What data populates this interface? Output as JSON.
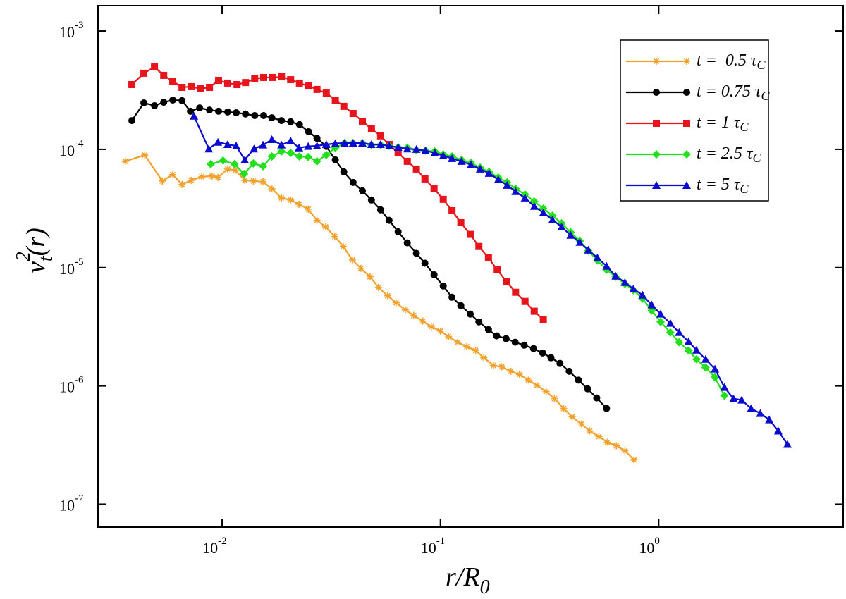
{
  "chart_data": {
    "type": "line",
    "log_x": true,
    "log_y": true,
    "xlabel": {
      "base": "r/R",
      "sub": "0"
    },
    "ylabel": {
      "base": "v",
      "sup": "2",
      "sub": "t",
      "rest": "(r)"
    },
    "xlim": [
      0.0027,
      7
    ],
    "ylim": [
      6.4e-08,
      0.00164
    ],
    "xticks": [
      {
        "value": 0.01,
        "label": "10",
        "exponent": "-2"
      },
      {
        "value": 0.1,
        "label": "10",
        "exponent": "-1"
      },
      {
        "value": 1,
        "label": "10",
        "exponent": "0"
      }
    ],
    "yticks": [
      {
        "value": 1e-07,
        "label": "10",
        "exponent": "-7"
      },
      {
        "value": 1e-06,
        "label": "10",
        "exponent": "-6"
      },
      {
        "value": 1e-05,
        "label": "10",
        "exponent": "-5"
      },
      {
        "value": 0.0001,
        "label": "10",
        "exponent": "-4"
      },
      {
        "value": 0.001,
        "label": "10",
        "exponent": "-3"
      }
    ],
    "grid": false,
    "legend": "upper right",
    "series": [
      {
        "name": "t =  0.5 τ",
        "name_sub": "C",
        "color": "#f2a12c",
        "marker": "star",
        "x": [
          0.0036,
          0.00442,
          0.00532,
          0.00594,
          0.00655,
          0.00722,
          0.00806,
          0.009,
          0.00957,
          0.0106,
          0.0115,
          0.0127,
          0.0139,
          0.0154,
          0.0169,
          0.0187,
          0.0206,
          0.0225,
          0.0248,
          0.0272,
          0.0298,
          0.0328,
          0.0359,
          0.0395,
          0.0432,
          0.0476,
          0.052,
          0.0573,
          0.0627,
          0.069,
          0.0754,
          0.083,
          0.0908,
          0.1,
          0.109,
          0.12,
          0.132,
          0.145,
          0.158,
          0.175,
          0.191,
          0.21,
          0.23,
          0.253,
          0.277,
          0.305,
          0.333,
          0.367,
          0.401,
          0.442,
          0.483,
          0.532,
          0.582,
          0.64,
          0.7,
          0.771
        ],
        "values": [
          7.92e-05,
          8.96e-05,
          5.4e-05,
          6.11e-05,
          5.04e-05,
          5.47e-05,
          5.86e-05,
          5.94e-05,
          5.78e-05,
          6.81e-05,
          6.63e-05,
          5.47e-05,
          5.4e-05,
          5.32e-05,
          4.64e-05,
          3.88e-05,
          3.73e-05,
          3.43e-05,
          3.12e-05,
          2.51e-05,
          2.21e-05,
          1.83e-05,
          1.51e-05,
          1.16e-05,
          9.86e-06,
          8.37e-06,
          6.81e-06,
          5.78e-06,
          5.04e-06,
          4.4e-06,
          3.94e-06,
          3.53e-06,
          3.16e-06,
          2.91e-06,
          2.61e-06,
          2.34e-06,
          2.15e-06,
          1.99e-06,
          1.73e-06,
          1.49e-06,
          1.45e-06,
          1.33e-06,
          1.25e-06,
          1.12e-06,
          1.01e-06,
          8.96e-07,
          7.81e-07,
          6.45e-07,
          5.47e-07,
          4.77e-07,
          4.16e-07,
          3.73e-07,
          3.34e-07,
          3.12e-07,
          2.83e-07,
          2.37e-07
        ]
      },
      {
        "name": "t = 0.75 τ",
        "name_sub": "C",
        "color": "#000000",
        "marker": "circle",
        "x": [
          0.00386,
          0.00438,
          0.0049,
          0.0054,
          0.00594,
          0.00655,
          0.00716,
          0.00789,
          0.00875,
          0.00963,
          0.0106,
          0.0116,
          0.0128,
          0.0141,
          0.0155,
          0.0169,
          0.0187,
          0.0206,
          0.0226,
          0.0249,
          0.0272,
          0.03,
          0.033,
          0.0361,
          0.0398,
          0.0439,
          0.0483,
          0.0532,
          0.0582,
          0.064,
          0.0705,
          0.0776,
          0.0849,
          0.0935,
          0.103,
          0.113,
          0.124,
          0.137,
          0.15,
          0.166,
          0.181,
          0.2,
          0.22,
          0.242,
          0.267,
          0.294,
          0.321,
          0.353,
          0.389,
          0.429,
          0.472,
          0.52,
          0.577
        ],
        "values": [
          0.000175,
          0.000247,
          0.000234,
          0.00025,
          0.000261,
          0.000258,
          0.00021,
          0.000224,
          0.000215,
          0.00021,
          0.000207,
          0.000204,
          0.000199,
          0.000193,
          0.000193,
          0.000185,
          0.000175,
          0.000171,
          0.000162,
          0.000141,
          0.000124,
          0.000106,
          8.15e-05,
          6.45e-05,
          5.25e-05,
          4.46e-05,
          3.73e-05,
          3.08e-05,
          2.51e-05,
          2.01e-05,
          1.62e-05,
          1.32e-05,
          1.09e-05,
          8.71e-06,
          7e-06,
          5.62e-06,
          4.78e-06,
          4.05e-06,
          3.48e-06,
          2.99e-06,
          2.65e-06,
          2.51e-06,
          2.34e-06,
          2.21e-06,
          2.07e-06,
          1.9e-06,
          1.73e-06,
          1.55e-06,
          1.33e-06,
          1.12e-06,
          9.46e-07,
          7.92e-07,
          6.45e-07
        ]
      },
      {
        "name": "t = 1 τ",
        "name_sub": "C",
        "color": "#e8141b",
        "marker": "square",
        "x": [
          0.00386,
          0.00438,
          0.0049,
          0.0054,
          0.00594,
          0.00655,
          0.00722,
          0.00795,
          0.00875,
          0.00963,
          0.0106,
          0.0117,
          0.0128,
          0.0141,
          0.0155,
          0.017,
          0.0187,
          0.0206,
          0.0226,
          0.0249,
          0.0272,
          0.03,
          0.033,
          0.0361,
          0.0398,
          0.0439,
          0.0483,
          0.0532,
          0.0582,
          0.064,
          0.0705,
          0.0776,
          0.0849,
          0.0935,
          0.103,
          0.113,
          0.124,
          0.137,
          0.15,
          0.166,
          0.182,
          0.201,
          0.221,
          0.244,
          0.269,
          0.296
        ],
        "values": [
          0.000353,
          0.00044,
          0.000497,
          0.000422,
          0.000378,
          0.000334,
          0.000339,
          0.000325,
          0.000334,
          0.000383,
          0.000363,
          0.000353,
          0.000367,
          0.000394,
          0.000405,
          0.000405,
          0.00041,
          0.000388,
          0.000363,
          0.000343,
          0.000321,
          0.000299,
          0.000261,
          0.000231,
          0.000201,
          0.000173,
          0.000149,
          0.00013,
          0.00011,
          9.33e-05,
          7.92e-05,
          6.81e-05,
          5.62e-05,
          4.64e-05,
          3.78e-05,
          3.03e-05,
          2.4e-05,
          1.91e-05,
          1.51e-05,
          1.21e-05,
          9.6e-06,
          7.6e-06,
          6.19e-06,
          5.18e-06,
          4.28e-06,
          3.63e-06
        ]
      },
      {
        "name": "t = 2.5 τ",
        "name_sub": "C",
        "color": "#22e01c",
        "marker": "diamond",
        "x": [
          0.00887,
          0.0101,
          0.0114,
          0.0126,
          0.0139,
          0.0154,
          0.0169,
          0.0187,
          0.0206,
          0.0226,
          0.0248,
          0.0272,
          0.03,
          0.033,
          0.0364,
          0.0398,
          0.0439,
          0.0483,
          0.0532,
          0.0582,
          0.064,
          0.0705,
          0.0776,
          0.0855,
          0.0942,
          0.103,
          0.113,
          0.125,
          0.138,
          0.152,
          0.167,
          0.184,
          0.202,
          0.221,
          0.244,
          0.269,
          0.296,
          0.326,
          0.359,
          0.395,
          0.435,
          0.476,
          0.524,
          0.577,
          0.635,
          0.7,
          0.766,
          0.843,
          0.929,
          1.02,
          1.13,
          1.24,
          1.37,
          1.49,
          1.64,
          1.81,
          2.0
        ],
        "values": [
          7.5e-05,
          8.03e-05,
          7.5e-05,
          6.19e-05,
          7.6e-05,
          7.2e-05,
          8.71e-05,
          9.6e-05,
          9.33e-05,
          8.71e-05,
          8.6e-05,
          7.92e-05,
          8.96e-05,
          0.000103,
          0.000113,
          0.000113,
          0.000113,
          0.000109,
          0.000109,
          0.000107,
          0.000104,
          0.000103,
          9.86e-05,
          9.73e-05,
          9.6e-05,
          9.08e-05,
          8.71e-05,
          8.15e-05,
          7.71e-05,
          7e-05,
          6.45e-05,
          5.78e-05,
          5.25e-05,
          4.64e-05,
          4.16e-05,
          3.63e-05,
          3.16e-05,
          2.75e-05,
          2.37e-05,
          1.99e-05,
          1.68e-05,
          1.39e-05,
          1.15e-05,
          9.6e-06,
          8.37e-06,
          7.3e-06,
          6.45e-06,
          5.47e-06,
          4.34e-06,
          3.48e-06,
          2.83e-06,
          2.34e-06,
          1.99e-06,
          1.68e-06,
          1.43e-06,
          1.18e-06,
          8.26e-07
        ]
      },
      {
        "name": "t = 5 τ",
        "name_sub": "C",
        "color": "#0a0ad0",
        "marker": "triangle",
        "x": [
          0.00743,
          0.00869,
          0.00957,
          0.0106,
          0.0116,
          0.0127,
          0.014,
          0.0154,
          0.0169,
          0.0187,
          0.0206,
          0.0225,
          0.0248,
          0.0272,
          0.03,
          0.033,
          0.0364,
          0.0398,
          0.0439,
          0.0483,
          0.0532,
          0.0582,
          0.064,
          0.0705,
          0.0776,
          0.0855,
          0.0942,
          0.103,
          0.113,
          0.125,
          0.138,
          0.152,
          0.167,
          0.184,
          0.202,
          0.221,
          0.244,
          0.269,
          0.296,
          0.326,
          0.359,
          0.395,
          0.435,
          0.476,
          0.524,
          0.577,
          0.635,
          0.7,
          0.766,
          0.843,
          0.929,
          1.02,
          1.13,
          1.24,
          1.37,
          1.49,
          1.64,
          1.81,
          2.0,
          2.2,
          2.4,
          2.65,
          2.92,
          3.21,
          3.53,
          3.89
        ],
        "values": [
          0.000191,
          0.000101,
          0.000115,
          0.00011,
          0.000107,
          8.15e-05,
          0.000101,
          0.000109,
          0.000121,
          0.000109,
          0.000118,
          0.000103,
          0.000106,
          0.000107,
          0.00011,
          0.000112,
          0.000113,
          0.000113,
          0.000113,
          0.00011,
          0.00011,
          0.000107,
          0.000104,
          0.000101,
          0.0001,
          9.73e-05,
          9.33e-05,
          8.84e-05,
          8.37e-05,
          7.92e-05,
          7.4e-05,
          6.81e-05,
          6.28e-05,
          5.55e-05,
          4.97e-05,
          4.4e-05,
          3.88e-05,
          3.3e-05,
          2.91e-05,
          2.54e-05,
          2.21e-05,
          1.88e-05,
          1.64e-05,
          1.41e-05,
          1.21e-05,
          1.03e-05,
          8.49e-06,
          7.5e-06,
          6.62e-06,
          5.86e-06,
          4.84e-06,
          4.05e-06,
          3.39e-06,
          2.83e-06,
          2.37e-06,
          2.01e-06,
          1.68e-06,
          1.39e-06,
          9.73e-07,
          7.81e-07,
          7.6e-07,
          6.45e-07,
          5.86e-07,
          5.18e-07,
          4.16e-07,
          3.21e-07
        ]
      }
    ]
  }
}
